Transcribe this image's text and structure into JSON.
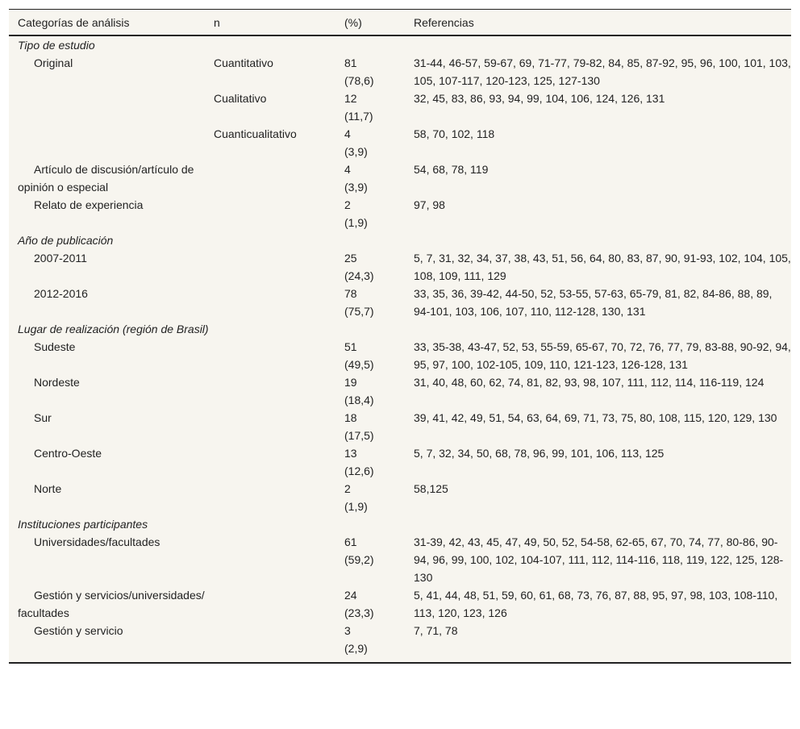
{
  "table": {
    "headers": [
      "Categorías de análisis",
      "n",
      "(%)",
      "Referencias"
    ],
    "rows": [
      {
        "type": "section",
        "label": "Tipo de estudio"
      },
      {
        "type": "item",
        "label": "Original",
        "sub": "Cuantitativo",
        "n": "81",
        "pct": "(78,6)",
        "refs": "31-44, 46-57, 59-67, 69, 71-77, 79-82, 84, 85, 87-92, 95, 96, 100, 101, 103, 105, 107-117, 120-123, 125, 127-130"
      },
      {
        "type": "item",
        "label": "",
        "sub": "Cualitativo",
        "n": "12",
        "pct": "(11,7)",
        "refs": "32, 45, 83, 86, 93, 94, 99, 104, 106, 124, 126, 131"
      },
      {
        "type": "item",
        "label": "",
        "sub": "Cuanticualitativo",
        "n": "4",
        "pct": "(3,9)",
        "refs": "58, 70, 102, 118"
      },
      {
        "type": "item",
        "label": "Artículo de discusión/artículo de opinión o especial",
        "sub": "",
        "n": "4",
        "pct": "(3,9)",
        "refs": "54, 68, 78, 119"
      },
      {
        "type": "item",
        "label": "Relato de experiencia",
        "sub": "",
        "n": "2",
        "pct": "(1,9)",
        "refs": "97, 98"
      },
      {
        "type": "section",
        "label": "Año de publicación"
      },
      {
        "type": "item",
        "label": "2007-2011",
        "sub": "",
        "n": "25",
        "pct": "(24,3)",
        "refs": "5, 7, 31, 32, 34, 37, 38, 43, 51, 56, 64, 80, 83, 87, 90, 91-93, 102, 104, 105, 108, 109, 111, 129"
      },
      {
        "type": "item",
        "label": "2012-2016",
        "sub": "",
        "n": "78",
        "pct": "(75,7)",
        "refs": "33, 35, 36, 39-42, 44-50, 52, 53-55, 57-63, 65-79, 81, 82, 84-86, 88, 89, 94-101, 103, 106, 107, 110, 112-128, 130, 131"
      },
      {
        "type": "section",
        "label": "Lugar de realización (región de Brasil)"
      },
      {
        "type": "item",
        "label": "Sudeste",
        "sub": "",
        "n": "51",
        "pct": "(49,5)",
        "refs": "33, 35-38, 43-47, 52, 53, 55-59, 65-67, 70, 72, 76, 77, 79, 83-88, 90-92, 94, 95, 97, 100, 102-105, 109, 110, 121-123, 126-128, 131"
      },
      {
        "type": "item",
        "label": "Nordeste",
        "sub": "",
        "n": "19",
        "pct": "(18,4)",
        "refs": "31, 40, 48, 60, 62, 74, 81, 82, 93, 98, 107, 111, 112, 114, 116-119, 124"
      },
      {
        "type": "item",
        "label": "Sur",
        "sub": "",
        "n": "18",
        "pct": "(17,5)",
        "refs": "39, 41, 42, 49, 51, 54, 63, 64, 69, 71, 73, 75, 80, 108, 115, 120, 129, 130"
      },
      {
        "type": "item",
        "label": "Centro-Oeste",
        "sub": "",
        "n": "13",
        "pct": "(12,6)",
        "refs": "5, 7, 32, 34, 50, 68, 78, 96, 99, 101, 106, 113, 125"
      },
      {
        "type": "item",
        "label": "Norte",
        "sub": "",
        "n": "2",
        "pct": "(1,9)",
        "refs": "58,125"
      },
      {
        "type": "section",
        "label": "Instituciones participantes"
      },
      {
        "type": "item",
        "label": "Universidades/facultades",
        "sub": "",
        "n": "61",
        "pct": "(59,2)",
        "refs": "31-39, 42, 43, 45, 47, 49, 50, 52, 54-58, 62-65, 67, 70, 74, 77, 80-86, 90-94, 96, 99, 100, 102, 104-107, 111, 112, 114-116, 118, 119, 122, 125, 128-130"
      },
      {
        "type": "item",
        "label": "Gestión y servicios/universidades/ facultades",
        "sub": "",
        "n": "24",
        "pct": "(23,3)",
        "refs": "5, 41, 44, 48, 51, 59, 60, 61, 68, 73, 76, 87, 88, 95, 97, 98, 103, 108-110, 113, 120, 123, 126"
      },
      {
        "type": "item",
        "label": "Gestión y servicio",
        "sub": "",
        "n": "3",
        "pct": "(2,9)",
        "refs": "7, 71, 78"
      }
    ]
  }
}
